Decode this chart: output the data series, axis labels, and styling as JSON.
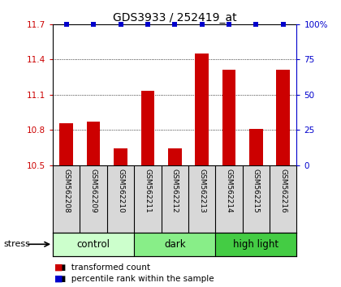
{
  "title": "GDS3933 / 252419_at",
  "samples": [
    "GSM562208",
    "GSM562209",
    "GSM562210",
    "GSM562211",
    "GSM562212",
    "GSM562213",
    "GSM562214",
    "GSM562215",
    "GSM562216"
  ],
  "bar_values": [
    10.86,
    10.87,
    10.64,
    11.13,
    10.64,
    11.45,
    11.31,
    10.81,
    11.31
  ],
  "percentile_values": [
    100,
    100,
    100,
    100,
    100,
    100,
    100,
    100,
    100
  ],
  "bar_color": "#cc0000",
  "percentile_color": "#0000cc",
  "ylim_left": [
    10.5,
    11.7
  ],
  "ylim_right": [
    0,
    100
  ],
  "yticks_left": [
    10.5,
    10.8,
    11.1,
    11.4,
    11.7
  ],
  "yticks_right": [
    0,
    25,
    50,
    75,
    100
  ],
  "groups": [
    {
      "label": "control",
      "start": 0,
      "end": 3,
      "color": "#ccffcc"
    },
    {
      "label": "dark",
      "start": 3,
      "end": 6,
      "color": "#88ee88"
    },
    {
      "label": "high light",
      "start": 6,
      "end": 9,
      "color": "#44cc44"
    }
  ],
  "stress_label": "stress",
  "legend_bar_label": "transformed count",
  "legend_pct_label": "percentile rank within the sample",
  "sample_bg_color": "#d8d8d8",
  "plot_bg": "#ffffff",
  "bar_width": 0.5
}
